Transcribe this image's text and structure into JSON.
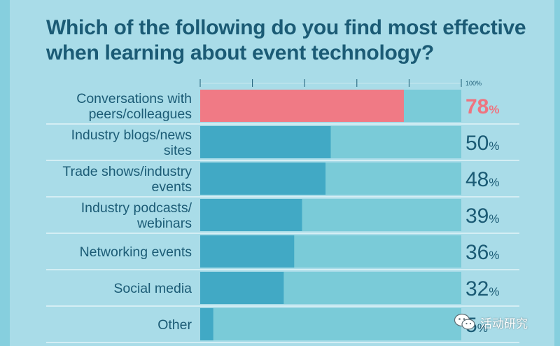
{
  "title_line1": "Which of the following do you find most effective",
  "title_line2": "when learning about event technology?",
  "watermark": {
    "text": "活动研究",
    "icon": "wechat-icon"
  },
  "colors": {
    "background": "#a9dce8",
    "track": "#7acbd8",
    "bar": "#41a9c5",
    "highlight_bar": "#f07a85",
    "highlight_text": "#ee7480",
    "text": "#1b5b75"
  },
  "chart_data": {
    "type": "bar",
    "orientation": "horizontal",
    "title": "Which of the following do you find most effective when learning about event technology?",
    "categories": [
      [
        "Conversations with",
        "peers/colleagues"
      ],
      [
        "Industry blogs/news",
        "sites"
      ],
      [
        "Trade shows/industry",
        "events"
      ],
      [
        "Industry podcasts/",
        "webinars"
      ],
      [
        "Networking events"
      ],
      [
        "Social media"
      ],
      [
        "Other"
      ]
    ],
    "values": [
      78,
      50,
      48,
      39,
      36,
      32,
      5
    ],
    "value_suffix": "%",
    "xlim": [
      0,
      100
    ],
    "axis_max_label": "100%",
    "highlight_index": 0,
    "grid": false
  }
}
